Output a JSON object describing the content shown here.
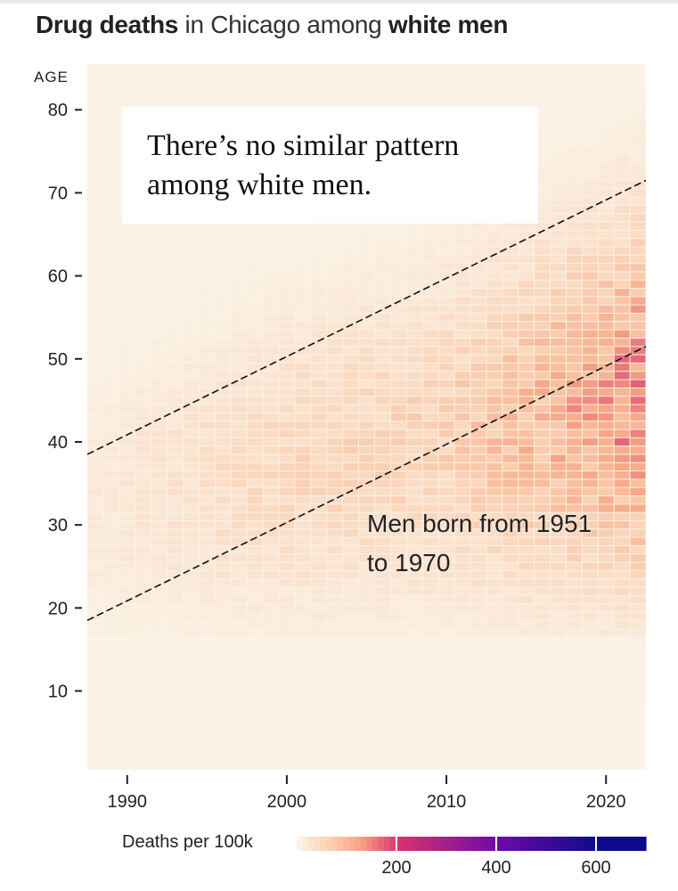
{
  "title": {
    "bold1": "Drug deaths",
    "middle": " in Chicago among ",
    "bold2": "white men"
  },
  "annotation": "There’s no similar pattern\namong white men.",
  "cohort_label": "Men born from 1951\nto 1970",
  "colors": {
    "background": "#faf3e6",
    "low": "#fbeede",
    "mid": "#f7a07e",
    "high200": "#d6336c",
    "high400": "#6b0aa8",
    "high600": "#0c0a8a"
  },
  "chart_data": {
    "type": "heatmap",
    "title": "Drug deaths in Chicago among white men",
    "ylabel": "AGE",
    "xlabel": "",
    "x_range": [
      1988,
      2022
    ],
    "y_range": [
      1,
      85
    ],
    "x_ticks": [
      1990,
      2000,
      2010,
      2020
    ],
    "y_ticks": [
      10,
      20,
      30,
      40,
      50,
      60,
      70,
      80
    ],
    "cohort_lines": [
      {
        "birth_year": 1951,
        "age_at_start": 38,
        "age_at_end": 71
      },
      {
        "birth_year": 1970,
        "age_at_start": 18,
        "age_at_end": 51
      }
    ],
    "legend": {
      "title": "Deaths per 100k",
      "ticks": [
        "200",
        "400",
        "600"
      ],
      "max": 700
    },
    "peak_rate_per_100k": 160,
    "peak_cell": {
      "year": 2021,
      "age": 40
    },
    "period_peaks": [
      {
        "year": 1990,
        "rate": 20
      },
      {
        "year": 2000,
        "rate": 45
      },
      {
        "year": 2010,
        "rate": 55
      },
      {
        "year": 2020,
        "rate": 120
      }
    ]
  }
}
